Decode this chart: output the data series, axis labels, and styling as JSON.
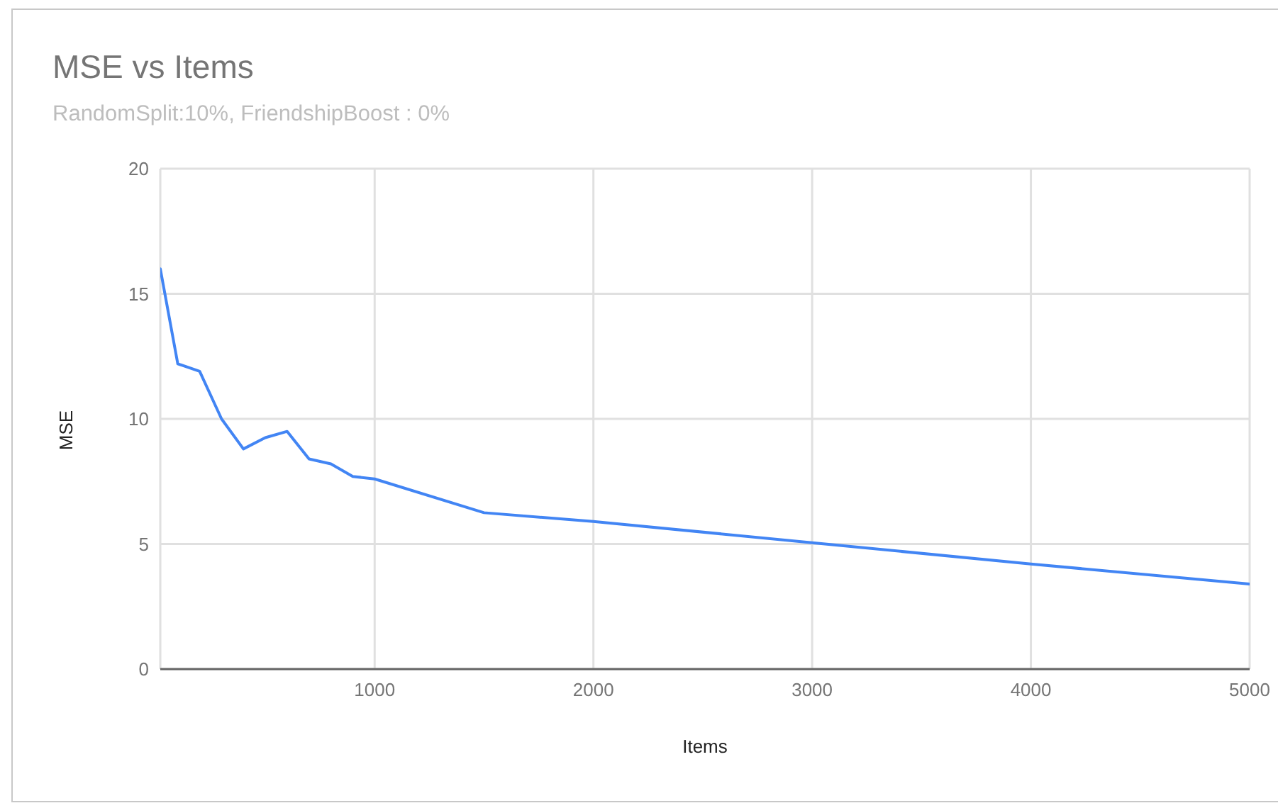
{
  "chart_data": {
    "type": "line",
    "title": "MSE vs Items",
    "subtitle": "RandomSplit:10%, FriendshipBoost : 0%",
    "xlabel": "Items",
    "ylabel": "MSE",
    "x": [
      20,
      100,
      200,
      300,
      400,
      500,
      600,
      700,
      800,
      900,
      1000,
      1500,
      2000,
      3000,
      4000,
      5000
    ],
    "series": [
      {
        "color": "#4285f4",
        "values": [
          16.0,
          12.2,
          11.9,
          10.0,
          8.8,
          9.25,
          9.5,
          8.4,
          8.2,
          7.7,
          7.6,
          6.25,
          5.9,
          5.05,
          4.2,
          3.4
        ]
      }
    ],
    "xlim": [
      20,
      5000
    ],
    "xticks": [
      1000,
      2000,
      3000,
      4000,
      5000
    ],
    "ylim": [
      0,
      20
    ],
    "yticks": [
      0,
      5,
      10,
      15,
      20
    ],
    "grid": true
  }
}
